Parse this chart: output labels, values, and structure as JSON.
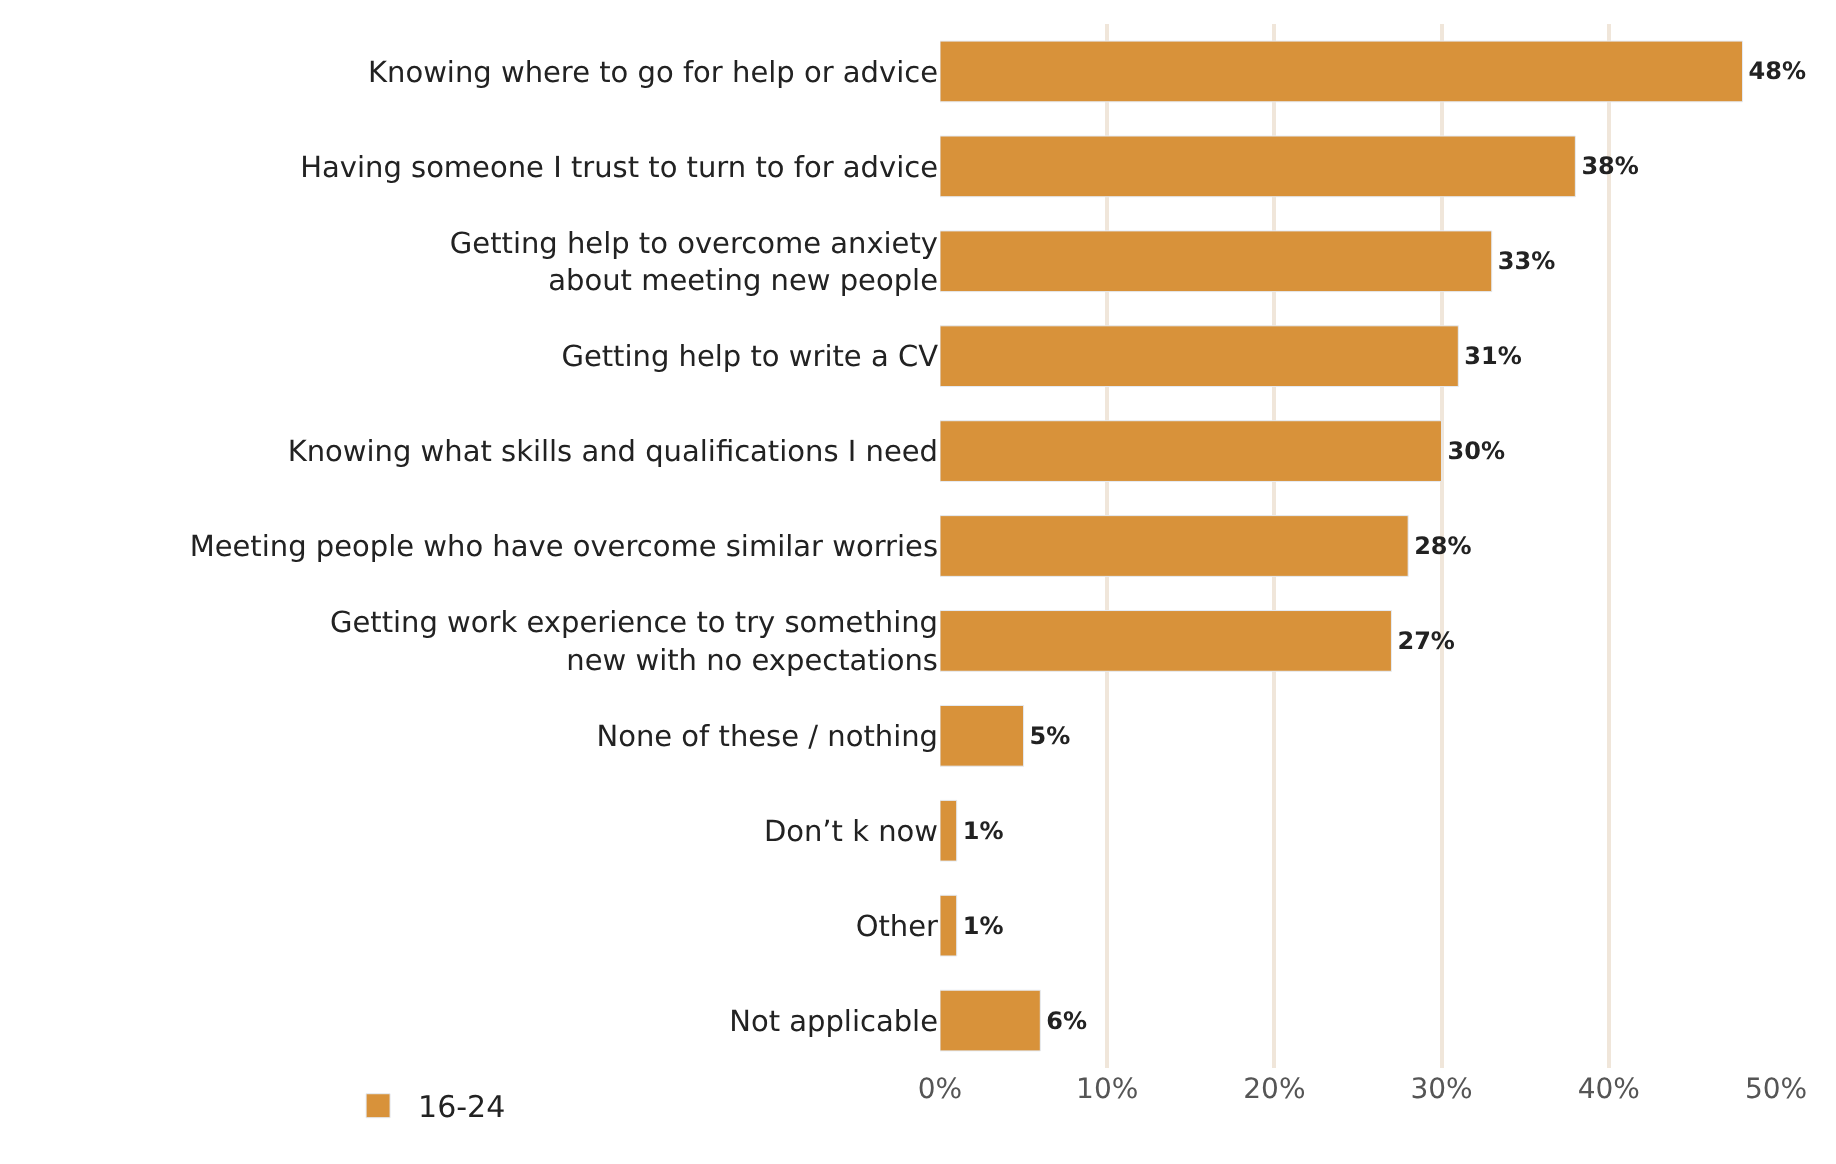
{
  "chart_data": {
    "type": "bar",
    "orientation": "horizontal",
    "categories": [
      "Knowing where to go for help or advice",
      "Having someone I trust to turn to for advice",
      "Getting help to overcome anxiety\nabout meeting new people",
      "Getting help to write a CV",
      "Knowing what skills and qualifications I need",
      "Meeting people who have overcome similar worries",
      "Getting work experience to try something\nnew with no expectations",
      "None of these / nothing",
      "Don’t k now",
      "Other",
      "Not applicable"
    ],
    "series": [
      {
        "name": "16-24",
        "color": "#d8923a",
        "values": [
          48,
          38,
          33,
          31,
          30,
          28,
          27,
          5,
          1,
          1,
          6
        ],
        "value_labels": [
          "48%",
          "38%",
          "33%",
          "31%",
          "30%",
          "28%",
          "27%",
          "5%",
          "1%",
          "1%",
          "6%"
        ]
      }
    ],
    "xlim": [
      0,
      50
    ],
    "xticks": [
      {
        "value": 0,
        "label": "0%"
      },
      {
        "value": 10,
        "label": "10%"
      },
      {
        "value": 20,
        "label": "20%"
      },
      {
        "value": 30,
        "label": "30%"
      },
      {
        "value": 40,
        "label": "40%"
      },
      {
        "value": 50,
        "label": "50%"
      }
    ],
    "grid": "x",
    "legend": "bottom left"
  }
}
